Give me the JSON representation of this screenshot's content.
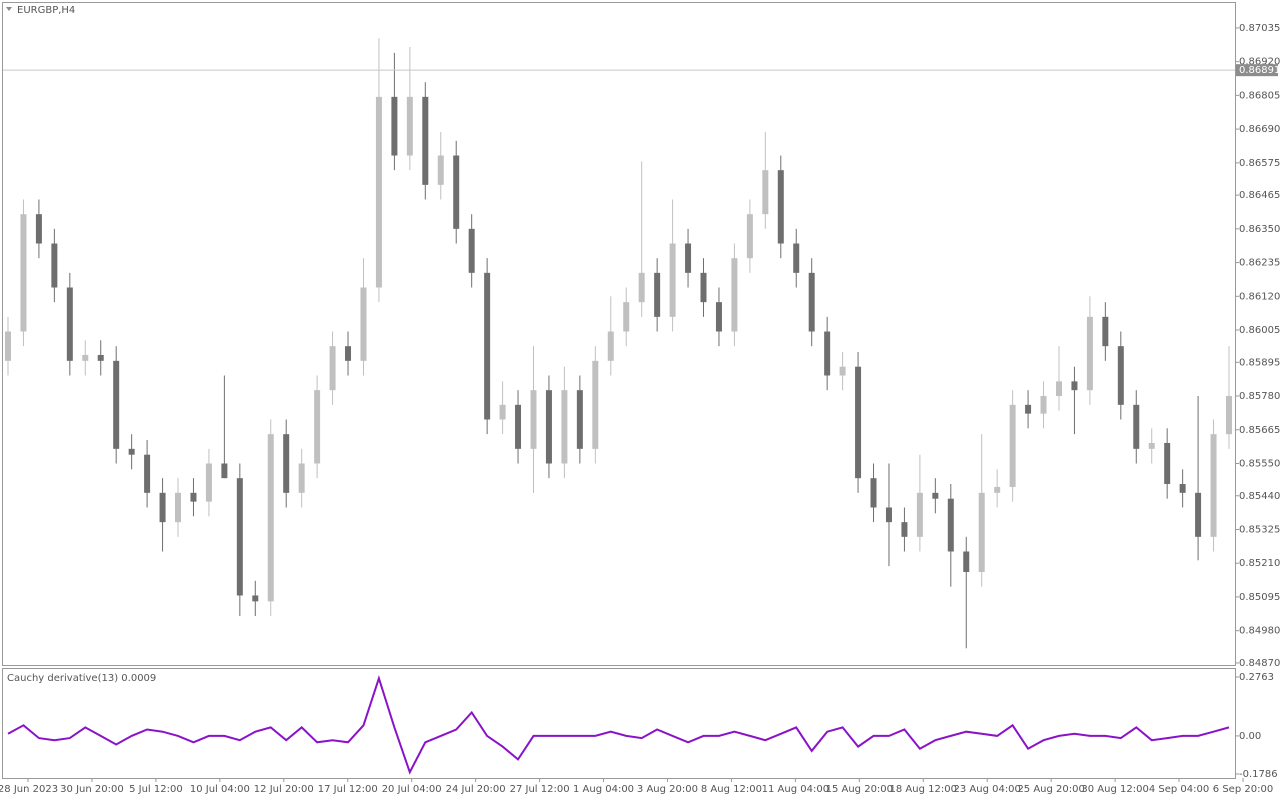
{
  "chart_data": [
    {
      "type": "candlestick",
      "title": "EURGBP,H4",
      "up_color": "#c0c0c0",
      "down_color": "#6e6e6e",
      "ylim": [
        0.84863,
        0.8712
      ],
      "yticks": [
        0.87035,
        {
          "value": 0.8692,
          "label": "0.86920"
        },
        0.86805,
        {
          "value": 0.8669,
          "label": "0.86690"
        },
        0.86575,
        0.86465,
        {
          "value": 0.8635,
          "label": "0.86350"
        },
        0.86235,
        {
          "value": 0.8612,
          "label": "0.86120"
        },
        0.86005,
        0.85895,
        {
          "value": 0.8578,
          "label": "0.85780"
        },
        0.85665,
        {
          "value": 0.8555,
          "label": "0.85550"
        },
        {
          "value": 0.8544,
          "label": "0.85440"
        },
        0.85325,
        {
          "value": 0.8521,
          "label": "0.85210"
        },
        0.85095,
        {
          "value": 0.8498,
          "label": "0.84980"
        },
        {
          "value": 0.8487,
          "label": "0.84870"
        }
      ],
      "last_price": 0.86891,
      "x_labels": [
        "28 Jun 2023",
        "30 Jun 20:00",
        "5 Jul 12:00",
        "10 Jul 04:00",
        "12 Jul 20:00",
        "17 Jul 12:00",
        "20 Jul 04:00",
        "24 Jul 20:00",
        "27 Jul 12:00",
        "1 Aug 04:00",
        "3 Aug 20:00",
        "8 Aug 12:00",
        "11 Aug 04:00",
        "15 Aug 20:00",
        "18 Aug 12:00",
        "23 Aug 04:00",
        "25 Aug 20:00",
        "30 Aug 12:00",
        "4 Sep 04:00",
        "6 Sep 20:00"
      ],
      "ohlc": [
        [
          0.859,
          0.8605,
          0.8585,
          0.86
        ],
        [
          0.86,
          0.8645,
          0.8595,
          0.864
        ],
        [
          0.864,
          0.8645,
          0.8625,
          0.863
        ],
        [
          0.863,
          0.8635,
          0.861,
          0.8615
        ],
        [
          0.8615,
          0.862,
          0.8585,
          0.859
        ],
        [
          0.859,
          0.8597,
          0.8585,
          0.8592
        ],
        [
          0.8592,
          0.8597,
          0.8585,
          0.859
        ],
        [
          0.859,
          0.8595,
          0.8555,
          0.856
        ],
        [
          0.856,
          0.8565,
          0.8553,
          0.8558
        ],
        [
          0.8558,
          0.8563,
          0.854,
          0.8545
        ],
        [
          0.8545,
          0.855,
          0.8525,
          0.8535
        ],
        [
          0.8535,
          0.855,
          0.853,
          0.8545
        ],
        [
          0.8545,
          0.855,
          0.8537,
          0.8542
        ],
        [
          0.8542,
          0.856,
          0.8537,
          0.8555
        ],
        [
          0.8555,
          0.8585,
          0.855,
          0.855
        ],
        [
          0.855,
          0.8555,
          0.8503,
          0.851
        ],
        [
          0.851,
          0.8515,
          0.8503,
          0.8508
        ],
        [
          0.8508,
          0.857,
          0.8503,
          0.8565
        ],
        [
          0.8565,
          0.857,
          0.854,
          0.8545
        ],
        [
          0.8545,
          0.856,
          0.854,
          0.8555
        ],
        [
          0.8555,
          0.8585,
          0.855,
          0.858
        ],
        [
          0.858,
          0.86,
          0.8575,
          0.8595
        ],
        [
          0.8595,
          0.86,
          0.8585,
          0.859
        ],
        [
          0.859,
          0.8625,
          0.8585,
          0.8615
        ],
        [
          0.8615,
          0.87,
          0.861,
          0.868
        ],
        [
          0.868,
          0.8695,
          0.8655,
          0.866
        ],
        [
          0.866,
          0.8697,
          0.8655,
          0.868
        ],
        [
          0.868,
          0.8685,
          0.8645,
          0.865
        ],
        [
          0.865,
          0.8668,
          0.8645,
          0.866
        ],
        [
          0.866,
          0.8665,
          0.863,
          0.8635
        ],
        [
          0.8635,
          0.864,
          0.8615,
          0.862
        ],
        [
          0.862,
          0.8625,
          0.8565,
          0.857
        ],
        [
          0.857,
          0.8583,
          0.8565,
          0.8575
        ],
        [
          0.8575,
          0.858,
          0.8555,
          0.856
        ],
        [
          0.856,
          0.8595,
          0.8545,
          0.858
        ],
        [
          0.858,
          0.8585,
          0.855,
          0.8555
        ],
        [
          0.8555,
          0.8588,
          0.855,
          0.858
        ],
        [
          0.858,
          0.8585,
          0.8555,
          0.856
        ],
        [
          0.856,
          0.8595,
          0.8555,
          0.859
        ],
        [
          0.859,
          0.8612,
          0.8585,
          0.86
        ],
        [
          0.86,
          0.8615,
          0.8595,
          0.861
        ],
        [
          0.861,
          0.8658,
          0.8605,
          0.862
        ],
        [
          0.862,
          0.8625,
          0.86,
          0.8605
        ],
        [
          0.8605,
          0.8645,
          0.86,
          0.863
        ],
        [
          0.863,
          0.8635,
          0.8615,
          0.862
        ],
        [
          0.862,
          0.8625,
          0.8605,
          0.861
        ],
        [
          0.861,
          0.8615,
          0.8595,
          0.86
        ],
        [
          0.86,
          0.863,
          0.8595,
          0.8625
        ],
        [
          0.8625,
          0.8645,
          0.862,
          0.864
        ],
        [
          0.864,
          0.8668,
          0.8635,
          0.8655
        ],
        [
          0.8655,
          0.866,
          0.8625,
          0.863
        ],
        [
          0.863,
          0.8635,
          0.8615,
          0.862
        ],
        [
          0.862,
          0.8625,
          0.8595,
          0.86
        ],
        [
          0.86,
          0.8605,
          0.858,
          0.8585
        ],
        [
          0.8585,
          0.8593,
          0.858,
          0.8588
        ],
        [
          0.8588,
          0.8593,
          0.8545,
          0.855
        ],
        [
          0.855,
          0.8555,
          0.8535,
          0.854
        ],
        [
          0.854,
          0.8555,
          0.852,
          0.8535
        ],
        [
          0.8535,
          0.854,
          0.8525,
          0.853
        ],
        [
          0.853,
          0.8558,
          0.8525,
          0.8545
        ],
        [
          0.8545,
          0.855,
          0.8538,
          0.8543
        ],
        [
          0.8543,
          0.8548,
          0.8513,
          0.8525
        ],
        [
          0.8525,
          0.853,
          0.8492,
          0.8518
        ],
        [
          0.8518,
          0.8565,
          0.8513,
          0.8545
        ],
        [
          0.8545,
          0.8553,
          0.854,
          0.8547
        ],
        [
          0.8547,
          0.858,
          0.8542,
          0.8575
        ],
        [
          0.8575,
          0.858,
          0.8567,
          0.8572
        ],
        [
          0.8572,
          0.8583,
          0.8567,
          0.8578
        ],
        [
          0.8578,
          0.8595,
          0.8573,
          0.8583
        ],
        [
          0.8583,
          0.8588,
          0.8565,
          0.858
        ],
        [
          0.858,
          0.8612,
          0.8575,
          0.8605
        ],
        [
          0.8605,
          0.861,
          0.859,
          0.8595
        ],
        [
          0.8595,
          0.86,
          0.857,
          0.8575
        ],
        [
          0.8575,
          0.858,
          0.8555,
          0.856
        ],
        [
          0.856,
          0.8567,
          0.8555,
          0.8562
        ],
        [
          0.8562,
          0.8567,
          0.8543,
          0.8548
        ],
        [
          0.8548,
          0.8553,
          0.854,
          0.8545
        ],
        [
          0.8545,
          0.8578,
          0.8522,
          0.853
        ],
        [
          0.853,
          0.857,
          0.8525,
          0.8565
        ],
        [
          0.8565,
          0.8595,
          0.856,
          0.8578
        ]
      ]
    },
    {
      "type": "line",
      "title": "Cauchy derivative(13) 0.0009",
      "color": "#8a12c8",
      "ylim": [
        -0.1973,
        0.3138
      ],
      "yticks": [
        0.2763,
        {
          "value": 0,
          "label": "0.00"
        },
        -0.1786
      ],
      "values": [
        0.01,
        0.05,
        -0.01,
        -0.02,
        -0.01,
        0.04,
        0,
        -0.04,
        0,
        0.03,
        0.02,
        0,
        -0.03,
        0,
        0,
        -0.02,
        0.02,
        0.04,
        -0.02,
        0.04,
        -0.03,
        -0.02,
        -0.03,
        0.05,
        0.27,
        0.04,
        -0.17,
        -0.03,
        0,
        0.03,
        0.11,
        0,
        -0.05,
        -0.11,
        0,
        0,
        0,
        0,
        0,
        0.02,
        0,
        -0.01,
        0.03,
        0,
        -0.03,
        0,
        0,
        0.02,
        0,
        -0.02,
        0.01,
        0.04,
        -0.07,
        0.02,
        0.04,
        -0.05,
        0,
        0,
        0.03,
        -0.06,
        -0.02,
        0,
        0.02,
        0.01,
        0,
        0.05,
        -0.06,
        -0.02,
        0,
        0.01,
        0,
        0,
        -0.01,
        0.04,
        -0.02,
        -0.01,
        0,
        0,
        0.02,
        0.04
      ]
    }
  ]
}
